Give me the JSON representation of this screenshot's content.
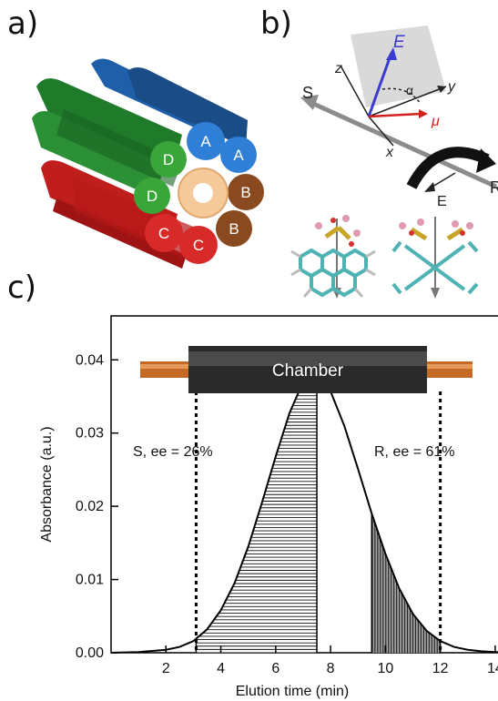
{
  "panels": {
    "a": {
      "label": "a)",
      "tubes": [
        {
          "id": "A1",
          "text": "A",
          "color": "#2f7fd6"
        },
        {
          "id": "A2",
          "text": "A",
          "color": "#2f7fd6"
        },
        {
          "id": "B1",
          "text": "B",
          "color": "#8a4a1f"
        },
        {
          "id": "B2",
          "text": "B",
          "color": "#8a4a1f"
        },
        {
          "id": "C1",
          "text": "C",
          "color": "#d92a2a"
        },
        {
          "id": "C2",
          "text": "C",
          "color": "#d92a2a"
        },
        {
          "id": "D1",
          "text": "D",
          "color": "#3aa63a"
        },
        {
          "id": "D2",
          "text": "D",
          "color": "#3aa63a"
        }
      ]
    },
    "b": {
      "label": "b)",
      "axes": {
        "x": "x",
        "y": "y",
        "z": "z"
      },
      "field": "E",
      "field_lower": "E",
      "dipole": "μ",
      "angle": "α",
      "enantiomer_left": "S",
      "enantiomer_right": "R",
      "colors": {
        "E_vector": "#3b3bd0",
        "mu_vector": "#d62020",
        "plane": "#d9d9d9",
        "axis_grey": "#888888"
      }
    },
    "c": {
      "label": "c)",
      "chamber_label": "Chamber",
      "left_annotation": "S, ee = 26%",
      "right_annotation": "R, ee = 61%"
    }
  },
  "chart_data": {
    "type": "area",
    "xlabel": "Elution time (min)",
    "ylabel": "Absorbance (a.u.)",
    "xlim": [
      0,
      14.6
    ],
    "ylim": [
      0,
      0.046
    ],
    "xticks": [
      2,
      4,
      6,
      8,
      10,
      12,
      14
    ],
    "yticks": [
      0.0,
      0.01,
      0.02,
      0.03,
      0.04
    ],
    "ytick_labels": [
      "0.00",
      "0.01",
      "0.02",
      "0.03",
      "0.04"
    ],
    "series": [
      {
        "x": [
          0,
          1,
          2,
          2.5,
          3,
          3.5,
          4,
          4.5,
          5,
          5.5,
          6,
          6.5,
          7,
          7.5,
          8,
          8.5,
          9,
          9.5,
          10,
          10.5,
          11,
          11.5,
          12,
          12.5,
          13,
          13.5,
          14,
          14.6
        ],
        "y": [
          0,
          0.0001,
          0.0004,
          0.0008,
          0.0016,
          0.0032,
          0.0058,
          0.0095,
          0.0145,
          0.0205,
          0.0268,
          0.0327,
          0.037,
          0.038,
          0.0357,
          0.031,
          0.0251,
          0.019,
          0.0135,
          0.0088,
          0.0053,
          0.003,
          0.0016,
          0.0008,
          0.0004,
          0.0002,
          0.0001,
          0
        ]
      }
    ],
    "shaded_regions": [
      {
        "from": 3.1,
        "to": 7.5,
        "hatch": "horizontal"
      },
      {
        "from": 9.5,
        "to": 12.0,
        "hatch": "vertical"
      }
    ],
    "dashed_lines_x": [
      3.1,
      12.0
    ],
    "chamber_span_x": [
      3.1,
      12.0
    ],
    "grid": false
  }
}
